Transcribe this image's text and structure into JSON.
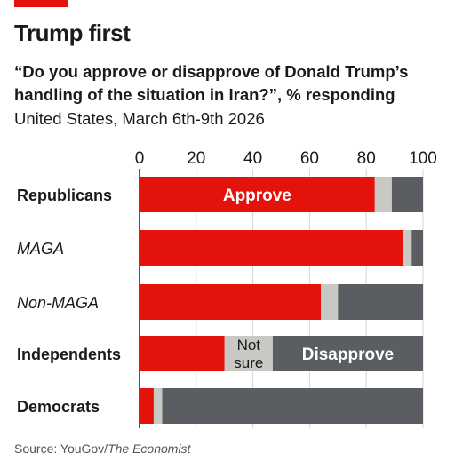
{
  "header": {
    "title": "Trump first",
    "subtitle": "“Do you approve or disapprove of Donald Trump’s handling of the situation in Iran?”, % responding",
    "subtitle2": "United States, March 6th-9th 2026"
  },
  "footer": {
    "source_prefix": "Source: YouGov/",
    "source_italic": "The Economist"
  },
  "colors": {
    "approve": "#e3120b",
    "not_sure": "#c8c8c4",
    "disapprove": "#5a5e62",
    "gridline": "#000000",
    "accent": "#e3120b"
  },
  "chart_data": {
    "type": "bar",
    "orientation": "horizontal",
    "stacked": true,
    "xlim": [
      0,
      100
    ],
    "ticks": [
      "0",
      "20",
      "40",
      "60",
      "80",
      "100"
    ],
    "tick_values": [
      0,
      20,
      40,
      60,
      80,
      100
    ],
    "categories": [
      "Republicans",
      "MAGA",
      "Non-MAGA",
      "Independents",
      "Democrats"
    ],
    "category_italic": [
      false,
      true,
      true,
      false,
      false
    ],
    "series": [
      {
        "name": "Approve",
        "values": [
          83,
          93,
          64,
          30,
          5
        ]
      },
      {
        "name": "Not sure",
        "values": [
          6,
          3,
          6,
          17,
          3
        ]
      },
      {
        "name": "Disapprove",
        "values": [
          11,
          4,
          30,
          53,
          92
        ]
      }
    ],
    "series_labels": [
      "Approve",
      "Not sure",
      "Disapprove"
    ],
    "label_row": [
      0,
      3,
      3
    ]
  }
}
